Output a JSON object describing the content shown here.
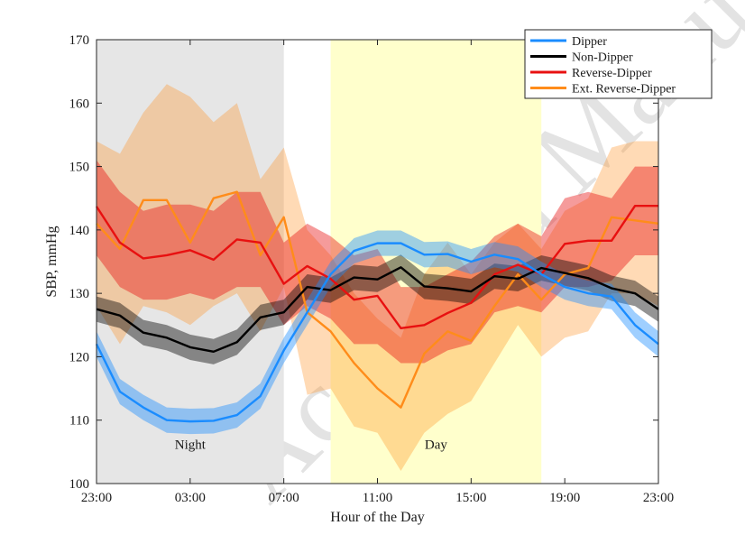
{
  "watermark": "Accepted Manuscript — Draft",
  "chart_data": {
    "type": "line",
    "xlabel": "Hour of the Day",
    "ylabel": "SBP, mmHg",
    "xlim": [
      0,
      24
    ],
    "ylim": [
      100,
      170
    ],
    "x_ticks": [
      0,
      4,
      8,
      12,
      16,
      20,
      24
    ],
    "x_tick_labels": [
      "23:00",
      "03:00",
      "07:00",
      "11:00",
      "15:00",
      "19:00",
      "23:00"
    ],
    "y_ticks": [
      100,
      110,
      120,
      130,
      140,
      150,
      160,
      170
    ],
    "legend_position": "top-right",
    "shaded_regions": [
      {
        "label": "Night",
        "x_start": 0,
        "x_end": 8,
        "color": "#e6e6e6"
      },
      {
        "label": "Day",
        "x_start": 10,
        "x_end": 19,
        "color": "#ffffcc"
      }
    ],
    "x": [
      0,
      1,
      2,
      3,
      4,
      5,
      6,
      7,
      8,
      9,
      10,
      11,
      12,
      13,
      14,
      15,
      16,
      17,
      18,
      19,
      20,
      21,
      22,
      23,
      24
    ],
    "series": [
      {
        "name": "Ext. Reverse-Dipper",
        "color": "#ff8c1a",
        "values": [
          141,
          137,
          144.7,
          144.7,
          138,
          145,
          146,
          136,
          142,
          127,
          124,
          119,
          115,
          112,
          120.5,
          124,
          122.5,
          128,
          133,
          129,
          133,
          134,
          142,
          141.5,
          141
        ],
        "lower": [
          128,
          122,
          128,
          127,
          125,
          128,
          130,
          124,
          131,
          114,
          115,
          109,
          108,
          102,
          108,
          111,
          113,
          119,
          125,
          120,
          123,
          124,
          130,
          130,
          128
        ],
        "upper": [
          154,
          152,
          158.5,
          163,
          161,
          157,
          160,
          148,
          153,
          140,
          136,
          130,
          126,
          123,
          133,
          138,
          133,
          138,
          141,
          137,
          143,
          145,
          153,
          154,
          154
        ]
      },
      {
        "name": "Reverse-Dipper",
        "color": "#e81010",
        "values": [
          143.7,
          138,
          135.5,
          136,
          136.8,
          135.3,
          138.5,
          138,
          131.5,
          134.3,
          132.3,
          129,
          129.6,
          124.5,
          125,
          126.9,
          128.5,
          133,
          134.5,
          133,
          137.8,
          138.3,
          138.3,
          143.8,
          143.8
        ],
        "lower": [
          136,
          131,
          129,
          129,
          130,
          129,
          131,
          131,
          125,
          128,
          126,
          122,
          122,
          119,
          119,
          121,
          122,
          127,
          128,
          127,
          131,
          131,
          132,
          136,
          136
        ],
        "upper": [
          151,
          146,
          143,
          144,
          144,
          143,
          146,
          146,
          138,
          141,
          139,
          136,
          137,
          131,
          131,
          133,
          135,
          139,
          141,
          139,
          145,
          146,
          145,
          150,
          150
        ]
      },
      {
        "name": "Non-Dipper",
        "color": "#000000",
        "values": [
          127.5,
          126.5,
          123.8,
          123,
          121.5,
          120.8,
          122.3,
          126.2,
          127,
          131,
          130.5,
          132.5,
          132.2,
          134.1,
          131.1,
          130.8,
          130.3,
          132.7,
          132.3,
          134,
          133.2,
          132.4,
          130.8,
          130,
          127.5
        ],
        "lower": [
          125.5,
          124.5,
          121.8,
          121,
          119.5,
          118.8,
          120.3,
          124.2,
          125,
          129,
          128.5,
          130.5,
          130.2,
          132.1,
          129.1,
          128.8,
          128.3,
          130.7,
          130.3,
          132,
          131.2,
          130.4,
          128.8,
          128,
          125.5
        ],
        "upper": [
          129.5,
          128.5,
          125.8,
          125,
          123.5,
          122.8,
          124.3,
          128.2,
          129,
          133,
          132.5,
          134.5,
          134.2,
          136.1,
          133.1,
          132.8,
          132.3,
          134.7,
          134.3,
          136,
          135.2,
          134.4,
          132.8,
          132,
          129.5
        ]
      },
      {
        "name": "Dipper",
        "color": "#1a8cff",
        "values": [
          122,
          114.5,
          112,
          110,
          109.8,
          109.9,
          110.8,
          113.8,
          121,
          127,
          133,
          136.7,
          137.9,
          137.9,
          136.1,
          136.2,
          135,
          136.1,
          135.4,
          133,
          131,
          130,
          129.5,
          125,
          122
        ],
        "lower": [
          120,
          112.5,
          110,
          108,
          107.8,
          107.9,
          108.8,
          111.8,
          119,
          125,
          131,
          134.7,
          135.9,
          135.9,
          134.1,
          134.2,
          133,
          134.1,
          133.4,
          131,
          129,
          128,
          127.5,
          123,
          120
        ],
        "upper": [
          124,
          116.5,
          114,
          112,
          111.8,
          111.9,
          112.8,
          115.8,
          123,
          129,
          135,
          138.7,
          139.9,
          139.9,
          138.1,
          138.2,
          137,
          138.1,
          137.4,
          135,
          133,
          132,
          131.5,
          127,
          124
        ]
      }
    ],
    "legend_order": [
      "Dipper",
      "Non-Dipper",
      "Reverse-Dipper",
      "Ext. Reverse-Dipper"
    ]
  }
}
